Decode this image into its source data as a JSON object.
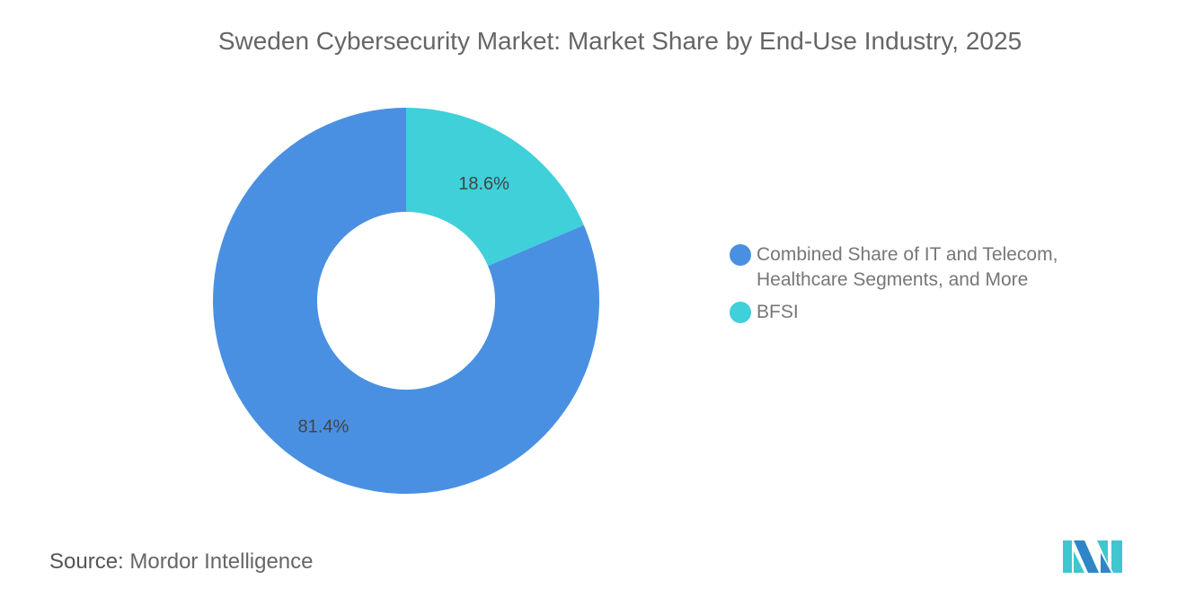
{
  "chart_data": {
    "type": "pie",
    "subtype": "donut",
    "title": "Sweden Cybersecurity Market: Market Share by End-Use Industry, 2025",
    "slices": [
      {
        "label": "BFSI",
        "value": 18.6,
        "display": "18.6%",
        "color": "#3FD0DA"
      },
      {
        "label": "Combined Share of IT and Telecom, Healthcare Segments, and More",
        "value": 81.4,
        "display": "81.4%",
        "color": "#4A90E2"
      }
    ],
    "legend": {
      "placement": "right",
      "entries": [
        {
          "label": "Combined Share of IT and Telecom, Healthcare Segments, and More",
          "color": "#4A90E2"
        },
        {
          "label": "BFSI",
          "color": "#3FD0DA"
        }
      ]
    }
  },
  "source": {
    "label": "Source:",
    "value": "Mordor Intelligence"
  },
  "logo": {
    "name": "mordor-intelligence-logo",
    "colors": [
      "#2E86C8",
      "#3FC7CF"
    ]
  }
}
